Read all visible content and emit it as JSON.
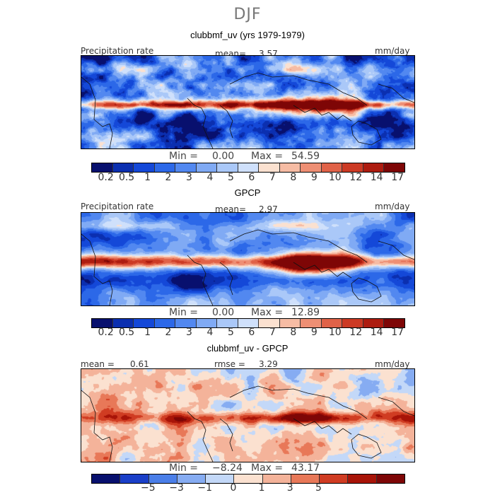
{
  "season": "DJF",
  "colors": {
    "scale": [
      "#08106e",
      "#0b2fb0",
      "#1448d8",
      "#2c68e8",
      "#5288f0",
      "#80aaf4",
      "#aac8f8",
      "#cfe0fb",
      "#fbe1d0",
      "#f6bca4",
      "#ee8f74",
      "#e06248",
      "#cc3a24",
      "#ad1c10",
      "#7e0606"
    ]
  },
  "panels": [
    {
      "title": "clubbmf_uv (yrs 1979-1979)",
      "left_label": "Precipitation rate",
      "center_label": "mean=",
      "center_value": "3.57",
      "right_label": "mm/day",
      "min_label": "Min =",
      "min_value": "0.00",
      "max_label": "Max =",
      "max_value": "54.59",
      "ticks": [
        "0.2",
        "0.5",
        "1",
        "2",
        "3",
        "4",
        "5",
        "6",
        "7",
        "8",
        "9",
        "10",
        "12",
        "14",
        "17"
      ]
    },
    {
      "title": "GPCP",
      "left_label": "Precipitation rate",
      "center_label": "mean=",
      "center_value": "2.97",
      "right_label": "mm/day",
      "min_label": "Min =",
      "min_value": "0.00",
      "max_label": "Max =",
      "max_value": "12.89",
      "ticks": [
        "0.2",
        "0.5",
        "1",
        "2",
        "3",
        "4",
        "5",
        "6",
        "7",
        "8",
        "9",
        "10",
        "12",
        "14",
        "17"
      ]
    },
    {
      "title": "clubbmf_uv - GPCP",
      "left_label": "mean =",
      "left_value": "0.61",
      "center_label": "rmse =",
      "center_value": "3.29",
      "right_label": "mm/day",
      "min_label": "Min =",
      "min_value": "−8.24",
      "max_label": "Max =",
      "max_value": "43.17",
      "ticks": [
        "−5",
        "−3",
        "−1",
        "0",
        "1",
        "3",
        "5"
      ]
    }
  ],
  "chart_data": [
    {
      "type": "heatmap",
      "title": "clubbmf_uv (yrs 1979-1979)",
      "variable": "Precipitation rate",
      "units": "mm/day",
      "mean": 3.57,
      "min": 0.0,
      "max": 54.59,
      "levels": [
        0.2,
        0.5,
        1,
        2,
        3,
        4,
        5,
        6,
        7,
        8,
        9,
        10,
        12,
        14,
        17
      ]
    },
    {
      "type": "heatmap",
      "title": "GPCP",
      "variable": "Precipitation rate",
      "units": "mm/day",
      "mean": 2.97,
      "min": 0.0,
      "max": 12.89,
      "levels": [
        0.2,
        0.5,
        1,
        2,
        3,
        4,
        5,
        6,
        7,
        8,
        9,
        10,
        12,
        14,
        17
      ]
    },
    {
      "type": "heatmap",
      "title": "clubbmf_uv - GPCP",
      "units": "mm/day",
      "mean": 0.61,
      "rmse": 3.29,
      "min": -8.24,
      "max": 43.17,
      "levels": [
        -5,
        -3,
        -1,
        0,
        1,
        3,
        5
      ]
    }
  ]
}
